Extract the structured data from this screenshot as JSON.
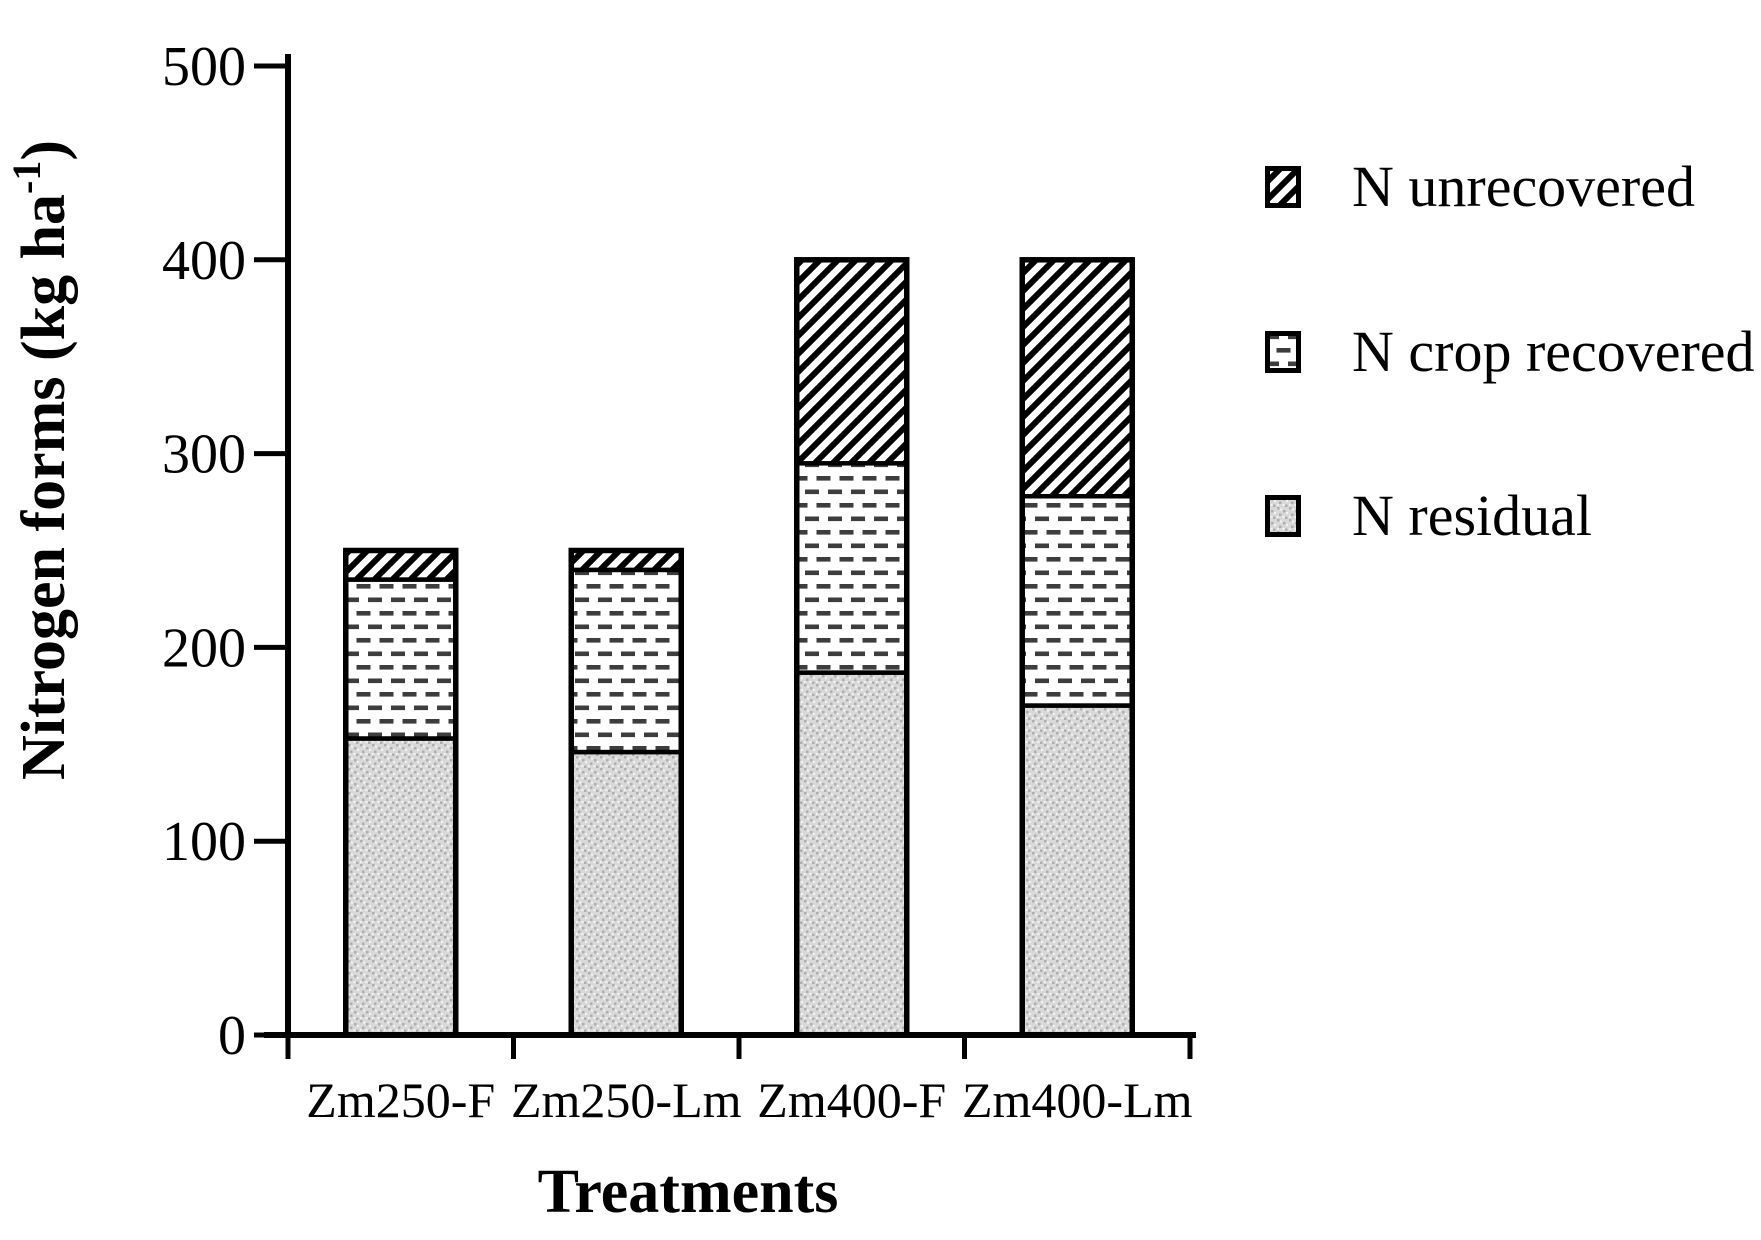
{
  "chart_data": {
    "type": "bar",
    "stacked": true,
    "title": "",
    "xlabel": "Treatments",
    "ylabel": "Nitrogen forms (kg ha-1)",
    "ylabel_parts": {
      "main": "Nitrogen forms (kg ha",
      "sup": "-1",
      "close": ")"
    },
    "categories": [
      "Zm250-F",
      "Zm250-Lm",
      "Zm400-F",
      "Zm400-Lm"
    ],
    "series": [
      {
        "name": "N residual",
        "pattern": "stipple",
        "values": [
          153,
          146,
          187,
          170
        ]
      },
      {
        "name": "N crop recovered",
        "pattern": "dashes",
        "values": [
          82,
          94,
          108,
          108
        ]
      },
      {
        "name": "N unrecovered",
        "pattern": "hatch",
        "values": [
          15,
          10,
          105,
          122
        ]
      }
    ],
    "stack_totals": [
      250,
      250,
      400,
      400
    ],
    "ylim": [
      0,
      500
    ],
    "y_ticks": [
      0,
      100,
      200,
      300,
      400,
      500
    ],
    "grid": false,
    "legend_position": "upper right",
    "legend": [
      {
        "label": "N unrecovered",
        "pattern": "hatch"
      },
      {
        "label": "N crop recovered",
        "pattern": "dashes"
      },
      {
        "label": "N residual",
        "pattern": "stipple"
      }
    ]
  },
  "colors": {
    "ink": "#000000",
    "hatch_line": "#000000",
    "dash_mark": "#3d3d3d",
    "stipple_base": "#d9d9d9",
    "stipple_dark": "#aeaeae",
    "stipple_light": "#f4f4f4",
    "background": "#ffffff"
  }
}
